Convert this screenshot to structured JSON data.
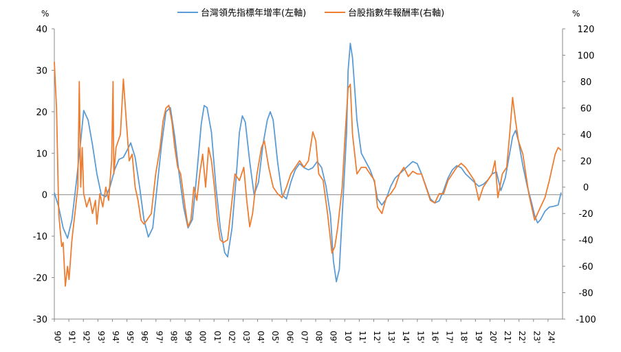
{
  "chart_data": {
    "type": "line",
    "title": "",
    "left_axis": {
      "unit": "%",
      "ylim": [
        -30,
        40
      ],
      "ticks": [
        40,
        30,
        20,
        10,
        0,
        -10,
        -20,
        -30
      ]
    },
    "right_axis": {
      "unit": "%",
      "ylim": [
        -100,
        120
      ],
      "ticks": [
        120,
        100,
        80,
        60,
        40,
        20,
        0,
        -20,
        -40,
        -60,
        -80,
        -100
      ]
    },
    "x_tick_labels": [
      "90'",
      "91'",
      "92'",
      "93'",
      "94'",
      "95'",
      "96'",
      "97'",
      "98'",
      "99'",
      "00'",
      "01'",
      "02'",
      "03'",
      "04'",
      "05'",
      "06'",
      "07'",
      "08'",
      "09'",
      "10'",
      "11'",
      "12'",
      "13'",
      "14'",
      "15'",
      "16'",
      "17'",
      "18'",
      "19'",
      "20'",
      "21'",
      "22'",
      "23'",
      "24'"
    ],
    "grid": false,
    "legend_position": "top-center",
    "series": [
      {
        "name": "台灣領先指標年增率(左軸)",
        "axis": "left",
        "color": "#5b9bd5",
        "points": [
          [
            1990.0,
            0.5
          ],
          [
            1990.3,
            -3
          ],
          [
            1990.6,
            -8
          ],
          [
            1990.9,
            -10.5
          ],
          [
            1991.2,
            -6
          ],
          [
            1991.5,
            3
          ],
          [
            1991.8,
            13
          ],
          [
            1992.0,
            20.3
          ],
          [
            1992.3,
            18
          ],
          [
            1992.6,
            12
          ],
          [
            1992.9,
            5
          ],
          [
            1993.2,
            0
          ],
          [
            1993.5,
            -0.5
          ],
          [
            1993.8,
            2
          ],
          [
            1994.1,
            6
          ],
          [
            1994.4,
            8.5
          ],
          [
            1994.7,
            9
          ],
          [
            1995.0,
            11
          ],
          [
            1995.2,
            12.5
          ],
          [
            1995.5,
            9
          ],
          [
            1995.8,
            2
          ],
          [
            1996.1,
            -6
          ],
          [
            1996.4,
            -10.2
          ],
          [
            1996.7,
            -8
          ],
          [
            1997.0,
            2
          ],
          [
            1997.3,
            12
          ],
          [
            1997.6,
            20
          ],
          [
            1997.9,
            21
          ],
          [
            1998.2,
            14
          ],
          [
            1998.5,
            5
          ],
          [
            1998.8,
            -3
          ],
          [
            1999.1,
            -8
          ],
          [
            1999.4,
            -6
          ],
          [
            1999.7,
            5
          ],
          [
            2000.0,
            17
          ],
          [
            2000.2,
            21.5
          ],
          [
            2000.4,
            21
          ],
          [
            2000.7,
            15
          ],
          [
            2001.0,
            2
          ],
          [
            2001.3,
            -8
          ],
          [
            2001.6,
            -14
          ],
          [
            2001.8,
            -15
          ],
          [
            2002.1,
            -8
          ],
          [
            2002.4,
            5
          ],
          [
            2002.6,
            15
          ],
          [
            2002.8,
            19
          ],
          [
            2003.0,
            17.5
          ],
          [
            2003.3,
            8
          ],
          [
            2003.6,
            0
          ],
          [
            2003.9,
            3
          ],
          [
            2004.2,
            12
          ],
          [
            2004.5,
            18
          ],
          [
            2004.7,
            20
          ],
          [
            2004.9,
            18
          ],
          [
            2005.2,
            8
          ],
          [
            2005.5,
            0
          ],
          [
            2005.8,
            -1
          ],
          [
            2006.1,
            3
          ],
          [
            2006.4,
            6
          ],
          [
            2006.7,
            7.5
          ],
          [
            2007.0,
            6.5
          ],
          [
            2007.3,
            6
          ],
          [
            2007.6,
            6.5
          ],
          [
            2007.9,
            8
          ],
          [
            2008.2,
            6.5
          ],
          [
            2008.5,
            2
          ],
          [
            2008.8,
            -5
          ],
          [
            2009.0,
            -16
          ],
          [
            2009.2,
            -21
          ],
          [
            2009.4,
            -18
          ],
          [
            2009.6,
            -5
          ],
          [
            2009.9,
            15
          ],
          [
            2010.0,
            30
          ],
          [
            2010.15,
            36.5
          ],
          [
            2010.3,
            33
          ],
          [
            2010.6,
            18
          ],
          [
            2010.9,
            10
          ],
          [
            2011.2,
            8
          ],
          [
            2011.5,
            6
          ],
          [
            2011.8,
            3
          ],
          [
            2012.0,
            -1
          ],
          [
            2012.3,
            -2.5
          ],
          [
            2012.6,
            -1
          ],
          [
            2012.9,
            2
          ],
          [
            2013.2,
            4
          ],
          [
            2013.5,
            5
          ],
          [
            2013.8,
            6
          ],
          [
            2014.1,
            7
          ],
          [
            2014.4,
            8
          ],
          [
            2014.7,
            7.5
          ],
          [
            2015.0,
            5
          ],
          [
            2015.3,
            2
          ],
          [
            2015.6,
            -1
          ],
          [
            2015.9,
            -2
          ],
          [
            2016.2,
            -1.5
          ],
          [
            2016.5,
            1
          ],
          [
            2016.8,
            4
          ],
          [
            2017.1,
            6
          ],
          [
            2017.4,
            7
          ],
          [
            2017.7,
            6.5
          ],
          [
            2018.0,
            5
          ],
          [
            2018.3,
            4
          ],
          [
            2018.6,
            3
          ],
          [
            2018.9,
            2
          ],
          [
            2019.2,
            2.5
          ],
          [
            2019.5,
            3.5
          ],
          [
            2019.8,
            5
          ],
          [
            2020.1,
            5.5
          ],
          [
            2020.4,
            1
          ],
          [
            2020.7,
            4
          ],
          [
            2021.0,
            10
          ],
          [
            2021.2,
            14
          ],
          [
            2021.4,
            15.5
          ],
          [
            2021.6,
            13
          ],
          [
            2021.9,
            7
          ],
          [
            2022.2,
            2
          ],
          [
            2022.5,
            -2
          ],
          [
            2022.7,
            -5
          ],
          [
            2022.9,
            -6.8
          ],
          [
            2023.1,
            -6
          ],
          [
            2023.4,
            -4
          ],
          [
            2023.7,
            -3
          ],
          [
            2024.0,
            -2.8
          ],
          [
            2024.3,
            -2.5
          ],
          [
            2024.5,
            0.5
          ]
        ]
      },
      {
        "name": "台股指數年報酬率(右軸)",
        "axis": "right",
        "color": "#ed7d31",
        "points": [
          [
            1990.0,
            95
          ],
          [
            1990.15,
            60
          ],
          [
            1990.3,
            -20
          ],
          [
            1990.5,
            -45
          ],
          [
            1990.6,
            -42
          ],
          [
            1990.75,
            -75
          ],
          [
            1990.9,
            -60
          ],
          [
            1991.0,
            -70
          ],
          [
            1991.2,
            -40
          ],
          [
            1991.45,
            -15
          ],
          [
            1991.6,
            0
          ],
          [
            1991.7,
            80
          ],
          [
            1991.8,
            0
          ],
          [
            1991.9,
            30
          ],
          [
            1992.0,
            -5
          ],
          [
            1992.2,
            -15
          ],
          [
            1992.4,
            -8
          ],
          [
            1992.6,
            -20
          ],
          [
            1992.8,
            -10
          ],
          [
            1992.9,
            -28
          ],
          [
            1993.1,
            -5
          ],
          [
            1993.3,
            -15
          ],
          [
            1993.5,
            0
          ],
          [
            1993.7,
            -10
          ],
          [
            1993.9,
            20
          ],
          [
            1994.0,
            80
          ],
          [
            1994.05,
            10
          ],
          [
            1994.2,
            30
          ],
          [
            1994.5,
            40
          ],
          [
            1994.7,
            82
          ],
          [
            1994.9,
            50
          ],
          [
            1995.1,
            20
          ],
          [
            1995.3,
            25
          ],
          [
            1995.5,
            0
          ],
          [
            1995.7,
            -10
          ],
          [
            1995.9,
            -25
          ],
          [
            1996.1,
            -28
          ],
          [
            1996.3,
            -25
          ],
          [
            1996.6,
            -20
          ],
          [
            1996.9,
            10
          ],
          [
            1997.2,
            30
          ],
          [
            1997.4,
            50
          ],
          [
            1997.6,
            60
          ],
          [
            1997.8,
            62
          ],
          [
            1998.0,
            50
          ],
          [
            1998.2,
            30
          ],
          [
            1998.4,
            15
          ],
          [
            1998.6,
            10
          ],
          [
            1998.9,
            -15
          ],
          [
            1999.1,
            -30
          ],
          [
            1999.3,
            -25
          ],
          [
            1999.5,
            0
          ],
          [
            1999.7,
            -10
          ],
          [
            1999.9,
            10
          ],
          [
            2000.1,
            25
          ],
          [
            2000.3,
            0
          ],
          [
            2000.5,
            30
          ],
          [
            2000.7,
            20
          ],
          [
            2000.9,
            0
          ],
          [
            2001.1,
            -25
          ],
          [
            2001.3,
            -40
          ],
          [
            2001.5,
            -42
          ],
          [
            2001.8,
            -40
          ],
          [
            2002.1,
            -10
          ],
          [
            2002.3,
            10
          ],
          [
            2002.6,
            5
          ],
          [
            2002.9,
            15
          ],
          [
            2003.1,
            -10
          ],
          [
            2003.3,
            -30
          ],
          [
            2003.5,
            -20
          ],
          [
            2003.8,
            10
          ],
          [
            2004.1,
            30
          ],
          [
            2004.3,
            35
          ],
          [
            2004.6,
            15
          ],
          [
            2004.9,
            0
          ],
          [
            2005.2,
            -5
          ],
          [
            2005.5,
            -8
          ],
          [
            2005.8,
            0
          ],
          [
            2006.1,
            10
          ],
          [
            2006.4,
            15
          ],
          [
            2006.7,
            20
          ],
          [
            2007.0,
            15
          ],
          [
            2007.3,
            20
          ],
          [
            2007.6,
            42
          ],
          [
            2007.8,
            35
          ],
          [
            2008.0,
            10
          ],
          [
            2008.3,
            5
          ],
          [
            2008.6,
            -20
          ],
          [
            2008.9,
            -50
          ],
          [
            2009.1,
            -45
          ],
          [
            2009.3,
            -30
          ],
          [
            2009.6,
            0
          ],
          [
            2009.8,
            40
          ],
          [
            2010.0,
            75
          ],
          [
            2010.15,
            78
          ],
          [
            2010.3,
            40
          ],
          [
            2010.6,
            10
          ],
          [
            2010.9,
            15
          ],
          [
            2011.2,
            15
          ],
          [
            2011.5,
            10
          ],
          [
            2011.8,
            5
          ],
          [
            2012.0,
            -15
          ],
          [
            2012.3,
            -20
          ],
          [
            2012.6,
            -8
          ],
          [
            2012.9,
            -5
          ],
          [
            2013.2,
            0
          ],
          [
            2013.5,
            10
          ],
          [
            2013.8,
            15
          ],
          [
            2014.1,
            8
          ],
          [
            2014.4,
            12
          ],
          [
            2014.7,
            10
          ],
          [
            2015.0,
            10
          ],
          [
            2015.3,
            0
          ],
          [
            2015.6,
            -10
          ],
          [
            2015.9,
            -12
          ],
          [
            2016.2,
            -5
          ],
          [
            2016.5,
            -5
          ],
          [
            2016.8,
            5
          ],
          [
            2017.1,
            10
          ],
          [
            2017.4,
            15
          ],
          [
            2017.7,
            18
          ],
          [
            2018.0,
            15
          ],
          [
            2018.3,
            10
          ],
          [
            2018.6,
            5
          ],
          [
            2018.9,
            -10
          ],
          [
            2019.2,
            0
          ],
          [
            2019.5,
            5
          ],
          [
            2019.8,
            10
          ],
          [
            2020.0,
            20
          ],
          [
            2020.2,
            -8
          ],
          [
            2020.5,
            10
          ],
          [
            2020.8,
            15
          ],
          [
            2021.0,
            40
          ],
          [
            2021.2,
            68
          ],
          [
            2021.4,
            50
          ],
          [
            2021.6,
            35
          ],
          [
            2021.9,
            25
          ],
          [
            2022.1,
            10
          ],
          [
            2022.3,
            -5
          ],
          [
            2022.5,
            -15
          ],
          [
            2022.7,
            -25
          ],
          [
            2022.9,
            -20
          ],
          [
            2023.1,
            -15
          ],
          [
            2023.4,
            -8
          ],
          [
            2023.7,
            5
          ],
          [
            2023.9,
            15
          ],
          [
            2024.1,
            25
          ],
          [
            2024.3,
            30
          ],
          [
            2024.5,
            28
          ]
        ]
      }
    ]
  }
}
